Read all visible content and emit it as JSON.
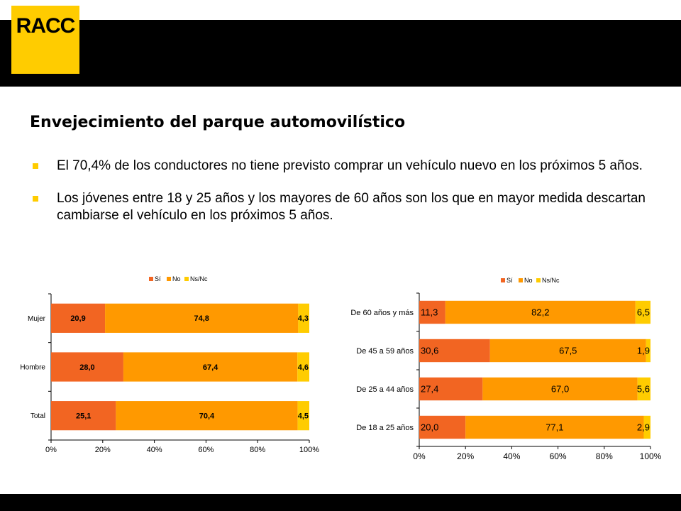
{
  "header": {
    "logo_text": "RACC"
  },
  "title": "Envejecimiento del parque automovilístico",
  "bullets": [
    "El 70,4% de los conductores no tiene previsto comprar un vehículo nuevo en los próximos 5 años.",
    "Los jóvenes entre 18 y 25 años y los mayores de 60 años son los que en mayor medida descartan cambiarse el vehículo en los próximos 5 años."
  ],
  "colors": {
    "si": "#F26522",
    "no": "#FF9900",
    "nsnc": "#FFCC00",
    "brand": "#FFCC00"
  },
  "chart_data": [
    {
      "type": "bar",
      "orientation": "horizontal",
      "stacked": "percent",
      "categories": [
        "Mujer",
        "Hombre",
        "Total"
      ],
      "series": [
        {
          "name": "Sí",
          "values": [
            20.9,
            28.0,
            25.1
          ],
          "labels": [
            "20,9",
            "28,0",
            "25,1"
          ]
        },
        {
          "name": "No",
          "values": [
            74.8,
            67.4,
            70.4
          ],
          "labels": [
            "74,8",
            "67,4",
            "70,4"
          ]
        },
        {
          "name": "Ns/Nc",
          "values": [
            4.3,
            4.6,
            4.5
          ],
          "labels": [
            "4,3",
            "4,6",
            "4,5"
          ]
        }
      ],
      "xticks": [
        "0%",
        "20%",
        "40%",
        "60%",
        "80%",
        "100%"
      ],
      "xlim": [
        0,
        100
      ],
      "legend": "top"
    },
    {
      "type": "bar",
      "orientation": "horizontal",
      "stacked": "percent",
      "categories": [
        "De 60 años y más",
        "De 45 a 59 años",
        "De 25 a 44 años",
        "De 18 a 25 años"
      ],
      "series": [
        {
          "name": "Sí",
          "values": [
            11.3,
            30.6,
            27.4,
            20.0
          ],
          "labels": [
            "11,3",
            "30,6",
            "27,4",
            "20,0"
          ]
        },
        {
          "name": "No",
          "values": [
            82.2,
            67.5,
            67.0,
            77.1
          ],
          "labels": [
            "82,2",
            "67,5",
            "67,0",
            "77,1"
          ]
        },
        {
          "name": "Ns/Nc",
          "values": [
            6.5,
            1.9,
            5.6,
            2.9
          ],
          "labels": [
            "6,5",
            "1,9",
            "5,6",
            "2,9"
          ]
        }
      ],
      "xticks": [
        "0%",
        "20%",
        "40%",
        "60%",
        "80%",
        "100%"
      ],
      "xlim": [
        0,
        100
      ],
      "legend": "top"
    }
  ]
}
